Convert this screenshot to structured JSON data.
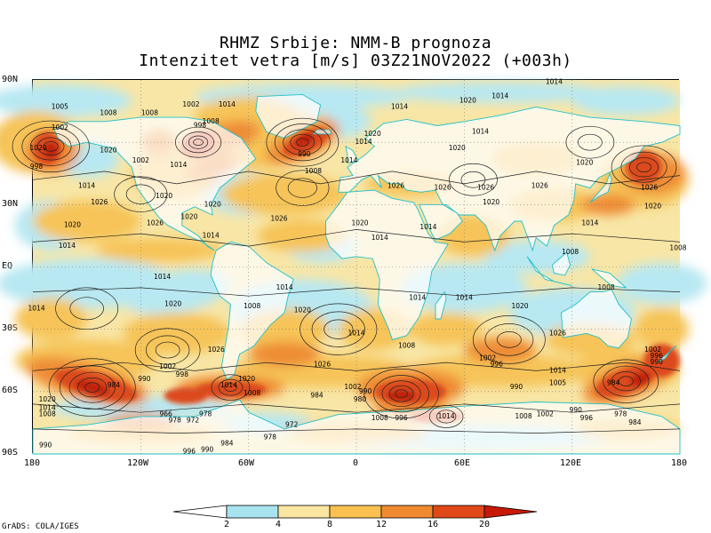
{
  "title_line1": "RHMZ Srbije: NMM-B prognoza",
  "title_line2": "Intenzitet vetra [m/s] 03Z21NOV2022 (+003h)",
  "footer": "GrADS: COLA/IGES",
  "lat_labels": [
    "90N",
    "60N",
    "30N",
    "EQ",
    "30S",
    "60S",
    "90S"
  ],
  "lon_labels": [
    "180",
    "120W",
    "60W",
    "0",
    "60E",
    "120E",
    "180"
  ],
  "colorbar": {
    "labels": [
      "2",
      "4",
      "8",
      "12",
      "16",
      "20"
    ],
    "colors": [
      "#ffffff",
      "#a8e4f0",
      "#fae6a0",
      "#fac050",
      "#f08a30",
      "#e04818",
      "#c81808"
    ]
  },
  "field_colors": {
    "calm": "#ffffff",
    "light": "#b8e8f2",
    "moderate": "#f8e6a6",
    "fresh": "#f6c458",
    "strong": "#ee8c34",
    "gale": "#dc4a1c",
    "storm": "#c0200c",
    "coast": "#20c0c8"
  },
  "pressure_labels": [
    {
      "text": "1005",
      "lon": -165,
      "lat": 77
    },
    {
      "text": "1008",
      "lon": -138,
      "lat": 74
    },
    {
      "text": "1008",
      "lon": -115,
      "lat": 74
    },
    {
      "text": "1002",
      "lon": -92,
      "lat": 78
    },
    {
      "text": "1014",
      "lon": -72,
      "lat": 78
    },
    {
      "text": "1014",
      "lon": 24,
      "lat": 77
    },
    {
      "text": "1020",
      "lon": 62,
      "lat": 80
    },
    {
      "text": "1014",
      "lon": 110,
      "lat": 89
    },
    {
      "text": "1002",
      "lon": -165,
      "lat": 67
    },
    {
      "text": "998",
      "lon": -87,
      "lat": 68
    },
    {
      "text": "1008",
      "lon": -81,
      "lat": 70
    },
    {
      "text": "1020",
      "lon": -177,
      "lat": 57
    },
    {
      "text": "998",
      "lon": -178,
      "lat": 48
    },
    {
      "text": "1020",
      "lon": -138,
      "lat": 56
    },
    {
      "text": "1002",
      "lon": -120,
      "lat": 51
    },
    {
      "text": "1014",
      "lon": -99,
      "lat": 49
    },
    {
      "text": "1020",
      "lon": -107,
      "lat": 34
    },
    {
      "text": "1014",
      "lon": -150,
      "lat": 39
    },
    {
      "text": "1026",
      "lon": -143,
      "lat": 31
    },
    {
      "text": "1026",
      "lon": -112,
      "lat": 21
    },
    {
      "text": "1020",
      "lon": -93,
      "lat": 24
    },
    {
      "text": "1020",
      "lon": -80,
      "lat": 30
    },
    {
      "text": "1026",
      "lon": -43,
      "lat": 23
    },
    {
      "text": "1014",
      "lon": -81,
      "lat": 15
    },
    {
      "text": "1020",
      "lon": -158,
      "lat": 20
    },
    {
      "text": "1014",
      "lon": -161,
      "lat": 10
    },
    {
      "text": "990",
      "lon": -29,
      "lat": 54
    },
    {
      "text": "1008",
      "lon": -24,
      "lat": 46
    },
    {
      "text": "1014",
      "lon": -4,
      "lat": 51
    },
    {
      "text": "1020",
      "lon": 9,
      "lat": 64
    },
    {
      "text": "1014",
      "lon": 4,
      "lat": 60
    },
    {
      "text": "1020",
      "lon": 2,
      "lat": 21
    },
    {
      "text": "1014",
      "lon": 13,
      "lat": 14
    },
    {
      "text": "1026",
      "lon": 22,
      "lat": 39
    },
    {
      "text": "1020",
      "lon": 56,
      "lat": 57
    },
    {
      "text": "1014",
      "lon": 69,
      "lat": 65
    },
    {
      "text": "1014",
      "lon": 80,
      "lat": 82
    },
    {
      "text": "1026",
      "lon": 48,
      "lat": 38
    },
    {
      "text": "1026",
      "lon": 72,
      "lat": 38
    },
    {
      "text": "1026",
      "lon": 102,
      "lat": 39
    },
    {
      "text": "1020",
      "lon": 75,
      "lat": 31
    },
    {
      "text": "1020",
      "lon": 127,
      "lat": 50
    },
    {
      "text": "1026",
      "lon": 163,
      "lat": 38
    },
    {
      "text": "1020",
      "lon": 165,
      "lat": 29
    },
    {
      "text": "1014",
      "lon": 130,
      "lat": 21
    },
    {
      "text": "1014",
      "lon": 40,
      "lat": 19
    },
    {
      "text": "1008",
      "lon": 119,
      "lat": 7
    },
    {
      "text": "1008",
      "lon": 139,
      "lat": -10
    },
    {
      "text": "1008",
      "lon": 179,
      "lat": 9
    },
    {
      "text": "1014",
      "lon": -108,
      "lat": -5
    },
    {
      "text": "1014",
      "lon": -40,
      "lat": -10
    },
    {
      "text": "1014",
      "lon": -178,
      "lat": -20
    },
    {
      "text": "1020",
      "lon": -102,
      "lat": -18
    },
    {
      "text": "1008",
      "lon": -58,
      "lat": -19
    },
    {
      "text": "1020",
      "lon": -30,
      "lat": -21
    },
    {
      "text": "1014",
      "lon": 34,
      "lat": -15
    },
    {
      "text": "1014",
      "lon": 60,
      "lat": -15
    },
    {
      "text": "1020",
      "lon": 91,
      "lat": -19
    },
    {
      "text": "1026",
      "lon": 112,
      "lat": -32
    },
    {
      "text": "1014",
      "lon": 0,
      "lat": -32
    },
    {
      "text": "1008",
      "lon": 28,
      "lat": -38
    },
    {
      "text": "1026",
      "lon": -19,
      "lat": -47
    },
    {
      "text": "1026",
      "lon": -78,
      "lat": -40
    },
    {
      "text": "1002",
      "lon": -105,
      "lat": -48
    },
    {
      "text": "998",
      "lon": -97,
      "lat": -52
    },
    {
      "text": "990",
      "lon": -118,
      "lat": -54
    },
    {
      "text": "984",
      "lon": -135,
      "lat": -57
    },
    {
      "text": "1014",
      "lon": -71,
      "lat": -57
    },
    {
      "text": "1020",
      "lon": -61,
      "lat": -54
    },
    {
      "text": "1008",
      "lon": -58,
      "lat": -61
    },
    {
      "text": "984",
      "lon": -22,
      "lat": -62
    },
    {
      "text": "1002",
      "lon": -2,
      "lat": -58
    },
    {
      "text": "990",
      "lon": 5,
      "lat": -60
    },
    {
      "text": "980",
      "lon": 2,
      "lat": -64
    },
    {
      "text": "1002",
      "lon": 73,
      "lat": -44
    },
    {
      "text": "996",
      "lon": 78,
      "lat": -47
    },
    {
      "text": "1014",
      "lon": 112,
      "lat": -50
    },
    {
      "text": "1005",
      "lon": 112,
      "lat": -56
    },
    {
      "text": "984",
      "lon": 143,
      "lat": -56
    },
    {
      "text": "990",
      "lon": 89,
      "lat": -58
    },
    {
      "text": "1002",
      "lon": 165,
      "lat": -40
    },
    {
      "text": "996",
      "lon": 167,
      "lat": -43
    },
    {
      "text": "990",
      "lon": 167,
      "lat": -46
    },
    {
      "text": "1020",
      "lon": -172,
      "lat": -64
    },
    {
      "text": "1014",
      "lon": -172,
      "lat": -68
    },
    {
      "text": "1008",
      "lon": -172,
      "lat": -71
    },
    {
      "text": "966",
      "lon": -106,
      "lat": -71
    },
    {
      "text": "978",
      "lon": -84,
      "lat": -71
    },
    {
      "text": "978",
      "lon": -101,
      "lat": -74
    },
    {
      "text": "972",
      "lon": -91,
      "lat": -74
    },
    {
      "text": "972",
      "lon": -36,
      "lat": -76
    },
    {
      "text": "978",
      "lon": -48,
      "lat": -82
    },
    {
      "text": "984",
      "lon": -72,
      "lat": -85
    },
    {
      "text": "990",
      "lon": -83,
      "lat": -88
    },
    {
      "text": "996",
      "lon": -93,
      "lat": -89
    },
    {
      "text": "990",
      "lon": -173,
      "lat": -86
    },
    {
      "text": "1008",
      "lon": 13,
      "lat": -73
    },
    {
      "text": "996",
      "lon": 25,
      "lat": -73
    },
    {
      "text": "1014",
      "lon": 50,
      "lat": -72
    },
    {
      "text": "1008",
      "lon": 93,
      "lat": -72
    },
    {
      "text": "1002",
      "lon": 105,
      "lat": -71
    },
    {
      "text": "990",
      "lon": 122,
      "lat": -69
    },
    {
      "text": "996",
      "lon": 128,
      "lat": -73
    },
    {
      "text": "978",
      "lon": 147,
      "lat": -71
    },
    {
      "text": "984",
      "lon": 155,
      "lat": -75
    }
  ]
}
